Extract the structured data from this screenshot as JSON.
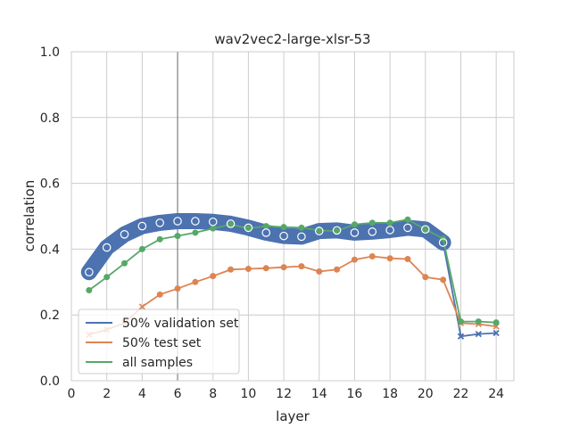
{
  "chart_data": {
    "type": "line",
    "title": "wav2vec2-large-xlsr-53",
    "xlabel": "layer",
    "ylabel": "correlation",
    "xlim": [
      0,
      25
    ],
    "ylim": [
      0.0,
      1.0
    ],
    "xticks": [
      0,
      2,
      4,
      6,
      8,
      10,
      12,
      14,
      16,
      18,
      20,
      22,
      24
    ],
    "yticks": [
      0.0,
      0.2,
      0.4,
      0.6,
      0.8,
      1.0
    ],
    "xtick_labels": [
      "0",
      "2",
      "4",
      "6",
      "8",
      "10",
      "12",
      "14",
      "16",
      "18",
      "20",
      "22",
      "24"
    ],
    "ytick_labels": [
      "0.0",
      "0.2",
      "0.4",
      "0.6",
      "0.8",
      "1.0"
    ],
    "grid": true,
    "legend_position": "lower-left",
    "vertical_reference_line": 6,
    "x": [
      1,
      2,
      3,
      4,
      5,
      6,
      7,
      8,
      9,
      10,
      11,
      12,
      13,
      14,
      15,
      16,
      17,
      18,
      19,
      20,
      21,
      22,
      23,
      24
    ],
    "series": [
      {
        "name": "50% validation set",
        "color": "#4c72b0",
        "values": [
          0.33,
          0.405,
          0.445,
          0.47,
          0.48,
          0.485,
          0.485,
          0.483,
          0.477,
          0.465,
          0.45,
          0.44,
          0.438,
          0.455,
          0.457,
          0.45,
          0.453,
          0.458,
          0.465,
          0.46,
          0.42,
          0.135,
          0.142,
          0.145
        ]
      },
      {
        "name": "50% test set",
        "color": "#dd8452",
        "values": [
          0.14,
          0.155,
          0.175,
          0.225,
          0.262,
          0.28,
          0.3,
          0.318,
          0.338,
          0.34,
          0.342,
          0.345,
          0.348,
          0.332,
          0.338,
          0.368,
          0.378,
          0.372,
          0.37,
          0.315,
          0.307,
          0.175,
          0.172,
          0.165
        ]
      },
      {
        "name": "all samples",
        "color": "#55a868",
        "values": [
          0.275,
          0.315,
          0.357,
          0.4,
          0.43,
          0.44,
          0.45,
          0.463,
          0.475,
          0.463,
          0.47,
          0.467,
          0.465,
          0.457,
          0.455,
          0.475,
          0.48,
          0.48,
          0.49,
          0.46,
          0.432,
          0.18,
          0.18,
          0.177
        ]
      }
    ]
  }
}
